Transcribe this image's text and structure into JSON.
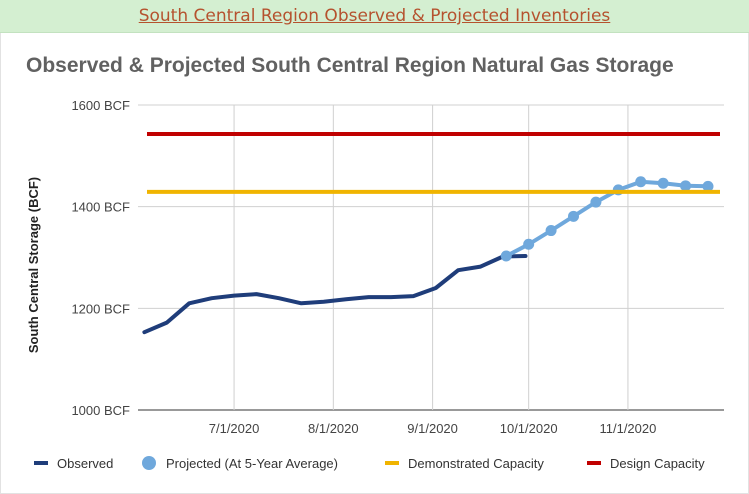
{
  "banner": {
    "text": "South Central Region Observed & Projected Inventories"
  },
  "chart_data": {
    "type": "line",
    "title": "Observed & Projected South Central Region Natural Gas Storage",
    "ylabel": "South Central Storage (BCF)",
    "xlabel": "",
    "ylim": [
      1000,
      1600
    ],
    "xlim": [
      "2020-06-01",
      "2020-12-01"
    ],
    "y_ticks": [
      1000,
      1200,
      1400,
      1600
    ],
    "y_tick_labels": [
      "1000 BCF",
      "1200 BCF",
      "1400 BCF",
      "1600 BCF"
    ],
    "x_ticks": [
      "2020-07-01",
      "2020-08-01",
      "2020-09-01",
      "2020-10-01",
      "2020-11-01"
    ],
    "x_tick_labels": [
      "7/1/2020",
      "8/1/2020",
      "9/1/2020",
      "10/1/2020",
      "11/1/2020"
    ],
    "grid": true,
    "legend_position": "bottom",
    "series": [
      {
        "name": "Observed",
        "kind": "line",
        "color": "#1f3d7a",
        "x": [
          "2020-06-03",
          "2020-06-10",
          "2020-06-17",
          "2020-06-24",
          "2020-07-01",
          "2020-07-08",
          "2020-07-15",
          "2020-07-22",
          "2020-07-29",
          "2020-08-05",
          "2020-08-12",
          "2020-08-19",
          "2020-08-26",
          "2020-09-02",
          "2020-09-09",
          "2020-09-16",
          "2020-09-23",
          "2020-09-30"
        ],
        "y": [
          1153,
          1172,
          1210,
          1220,
          1225,
          1228,
          1220,
          1210,
          1213,
          1218,
          1222,
          1222,
          1224,
          1240,
          1275,
          1282,
          1302,
          1303
        ]
      },
      {
        "name": "Projected (At 5-Year Average)",
        "kind": "line-markers",
        "color": "#6fa8dc",
        "x": [
          "2020-09-24",
          "2020-10-01",
          "2020-10-08",
          "2020-10-15",
          "2020-10-22",
          "2020-10-29",
          "2020-11-05",
          "2020-11-12",
          "2020-11-19",
          "2020-11-26"
        ],
        "y": [
          1303,
          1326,
          1353,
          1381,
          1409,
          1433,
          1449,
          1446,
          1441,
          1440
        ]
      },
      {
        "name": "Demonstrated Capacity",
        "kind": "hline",
        "color": "#f0b400",
        "y": 1429
      },
      {
        "name": "Design Capacity",
        "kind": "hline",
        "color": "#c00000",
        "y": 1543
      }
    ]
  }
}
